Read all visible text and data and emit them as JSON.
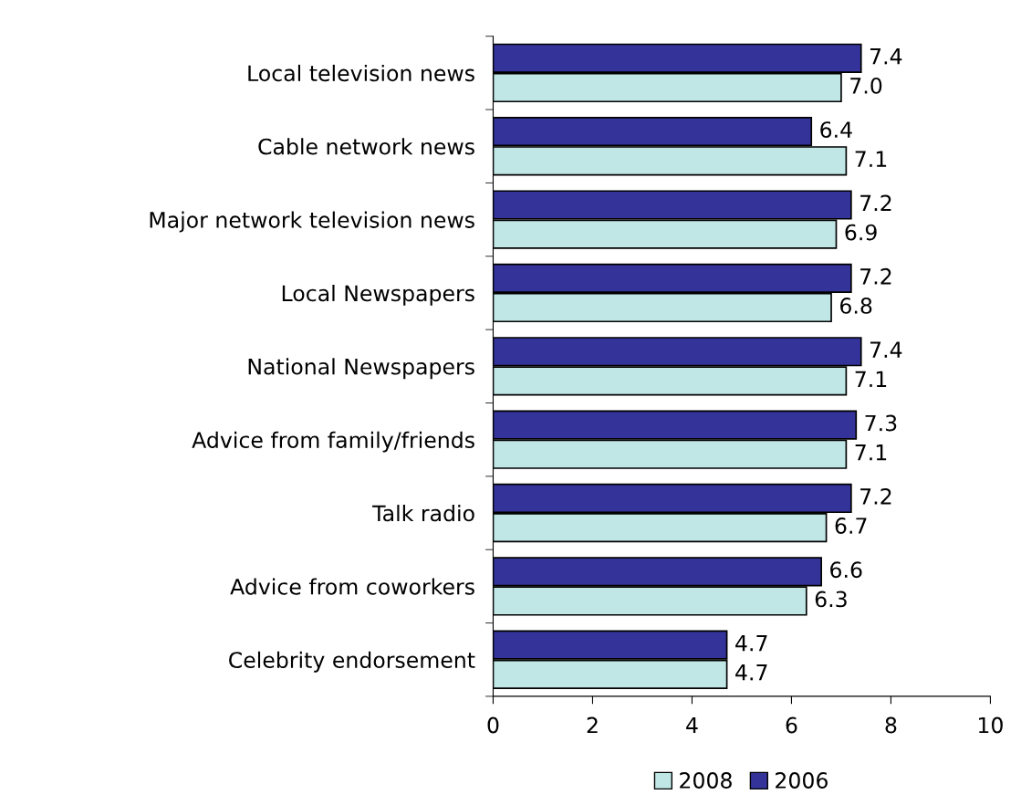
{
  "chart_data": {
    "type": "bar",
    "orientation": "horizontal",
    "categories": [
      "Local television news",
      "Cable network news",
      "Major network television news",
      "Local Newspapers",
      "National Newspapers",
      "Advice from family/friends",
      "Talk radio",
      "Advice from coworkers",
      "Celebrity endorsement"
    ],
    "series": [
      {
        "name": "2008",
        "color": "#c0e6e6",
        "values": [
          7.0,
          7.1,
          6.9,
          6.8,
          7.1,
          7.1,
          6.7,
          6.3,
          4.7
        ],
        "value_labels": [
          "7.0",
          "7.1",
          "6.9",
          "6.8",
          "7.1",
          "7.1",
          "6.7",
          "6.3",
          "4.7"
        ]
      },
      {
        "name": "2006",
        "color": "#333399",
        "values": [
          7.4,
          6.4,
          7.2,
          7.2,
          7.4,
          7.3,
          7.2,
          6.6,
          4.7
        ],
        "value_labels": [
          "7.4",
          "6.4",
          "7.2",
          "7.2",
          "7.4",
          "7.3",
          "7.2",
          "6.6",
          "4.7"
        ]
      }
    ],
    "xlim": [
      0,
      10
    ],
    "xticks": [
      0,
      2,
      4,
      6,
      8,
      10
    ],
    "grid": false,
    "legend": "bottom"
  }
}
